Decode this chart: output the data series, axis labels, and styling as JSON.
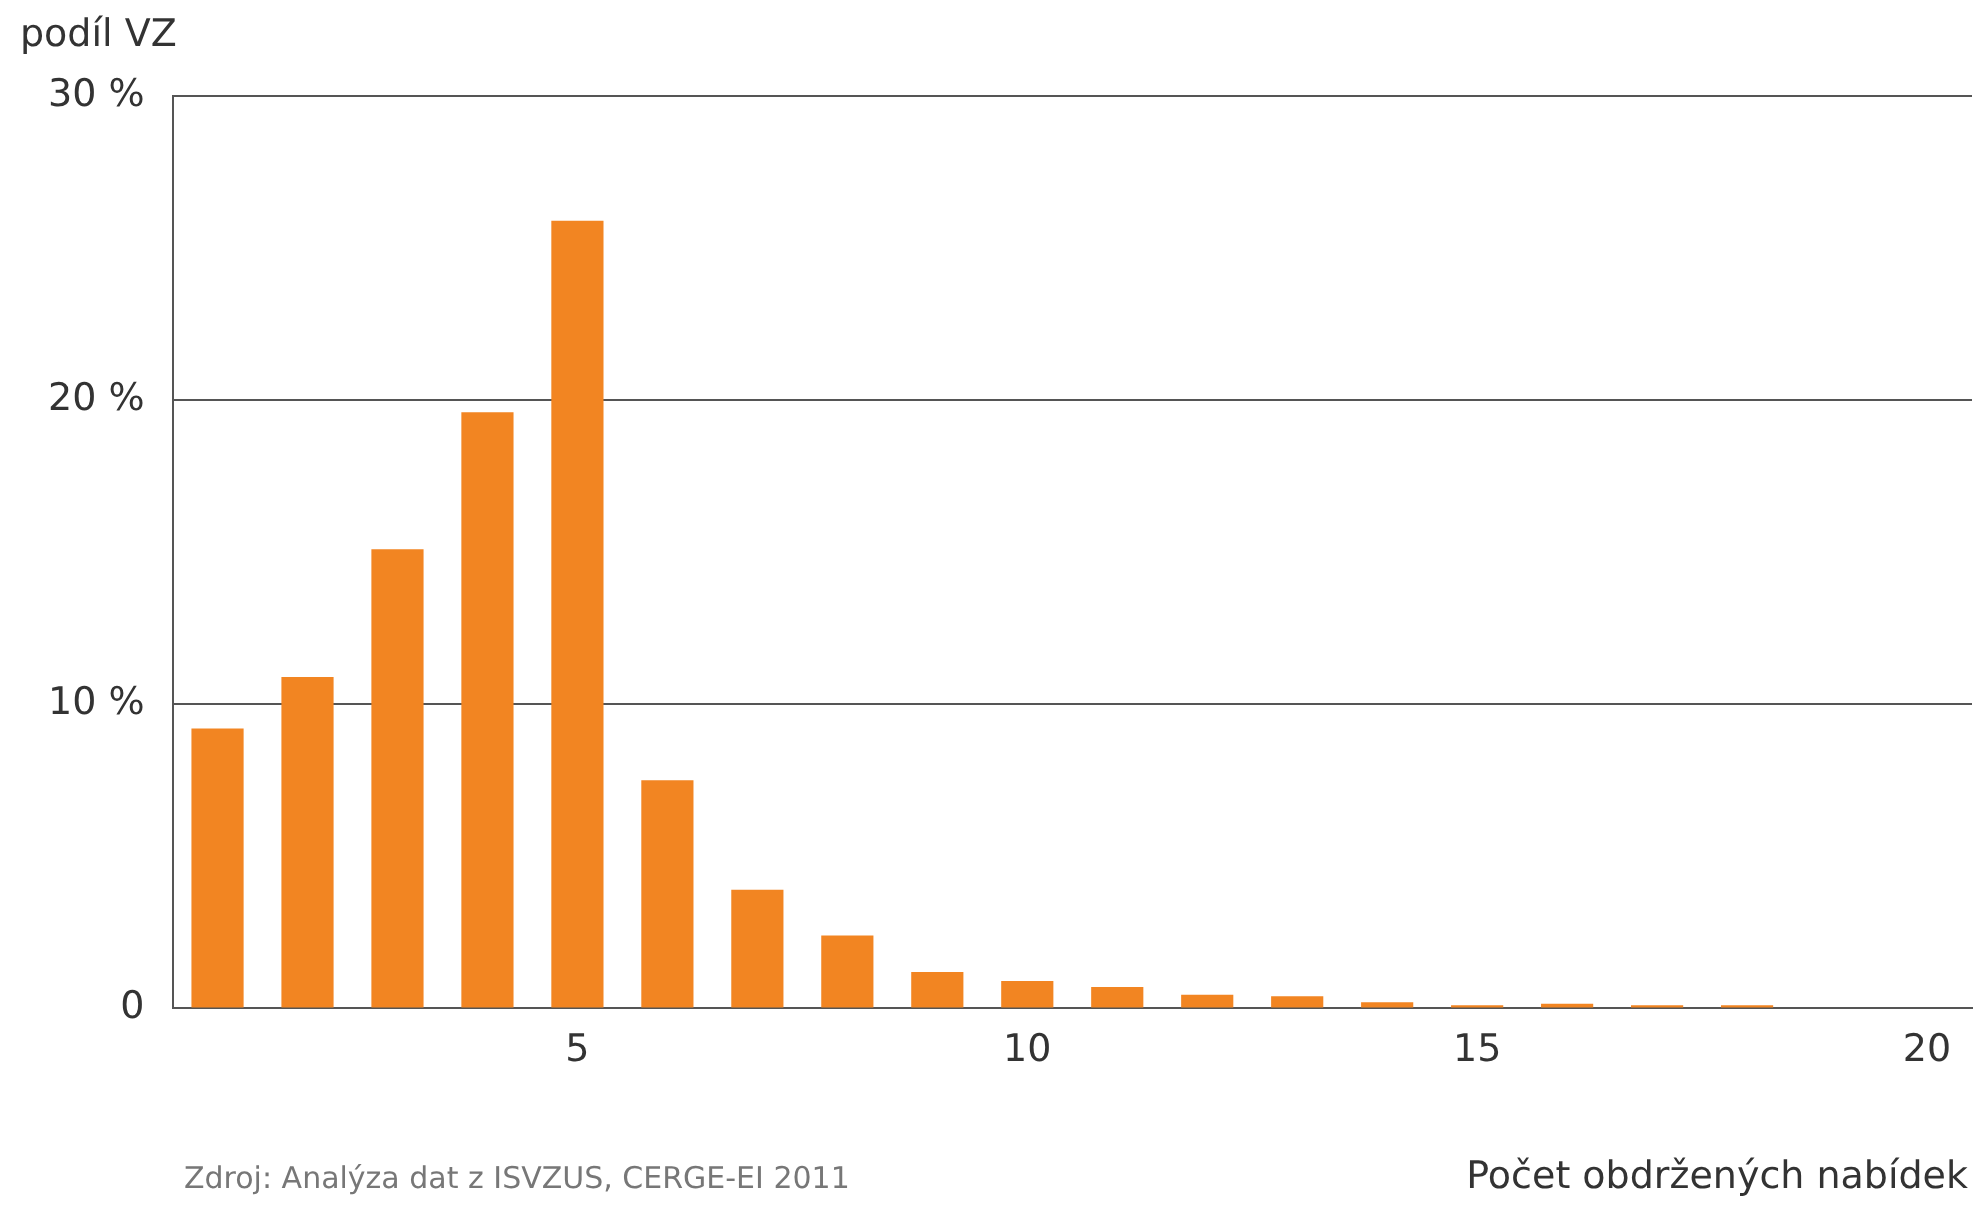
{
  "chart_data": {
    "type": "bar",
    "xlabel": "Počet obdržených nabídek",
    "ylabel": "podíl VZ",
    "annotations": [
      "Zdroj: Analýza dat z ISVZUS, CERGE-EI 2011"
    ],
    "x": [
      1,
      2,
      3,
      4,
      5,
      6,
      7,
      8,
      9,
      10,
      11,
      12,
      13,
      14,
      15,
      16,
      17,
      18
    ],
    "values": [
      9.2,
      10.9,
      15.1,
      19.6,
      25.9,
      7.5,
      3.9,
      2.4,
      1.2,
      0.9,
      0.7,
      0.45,
      0.4,
      0.2,
      0.1,
      0.15,
      0.1,
      0.1
    ],
    "color": "#f28522",
    "xlim": [
      0.5,
      20.5
    ],
    "xticks": [
      5,
      10,
      15,
      20
    ],
    "ylim": [
      0,
      30
    ],
    "yticks": [
      {
        "value": 0,
        "label": "0"
      },
      {
        "value": 10,
        "label": "10 %"
      },
      {
        "value": 20,
        "label": "20 %"
      },
      {
        "value": 30,
        "label": "30 %"
      }
    ],
    "grid": "y",
    "legend": false
  }
}
